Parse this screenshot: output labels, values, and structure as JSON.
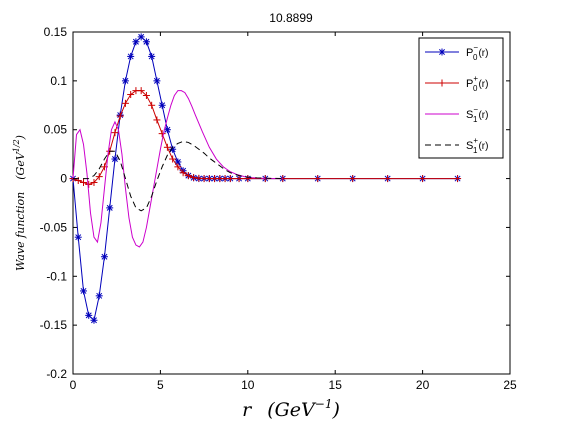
{
  "chart_data": {
    "type": "line",
    "title": "10.8899",
    "xlabel": "r (GeV^-1)",
    "xlabel_main": "r",
    "xlabel_unit_base": "(GeV",
    "xlabel_unit_exp": "−1",
    "xlabel_unit_close": ")",
    "ylabel": "Wave function (GeV^1/2)",
    "ylabel_main": "Wave function",
    "ylabel_unit_base": "(GeV",
    "ylabel_unit_exp": "1/2",
    "ylabel_unit_close": ")",
    "xlim": [
      0,
      25
    ],
    "ylim": [
      -0.2,
      0.15
    ],
    "xticks": [
      "0",
      "5",
      "10",
      "15",
      "20",
      "25"
    ],
    "yticks": [
      "0.15",
      "0.1",
      "0.05",
      "0",
      "-0.05",
      "-0.1",
      "-0.15",
      "-0.2"
    ],
    "grid": false,
    "legend_position": "top-right",
    "series": [
      {
        "name": "P0-(r)",
        "legend": {
          "base": "P",
          "sup": "−",
          "sub": "0",
          "arg": "(r)"
        },
        "color": "#0000bb",
        "line": "solid",
        "marker": "star",
        "x": [
          0.0,
          0.3,
          0.6,
          0.9,
          1.2,
          1.5,
          1.8,
          2.1,
          2.4,
          2.7,
          3.0,
          3.3,
          3.6,
          3.9,
          4.2,
          4.5,
          4.8,
          5.1,
          5.4,
          5.7,
          6.0,
          6.3,
          6.6,
          6.9,
          7.2,
          7.5,
          7.8,
          8.1,
          8.4,
          8.7,
          9.0,
          9.5,
          10.0,
          11.0,
          12.0,
          14.0,
          16.0,
          18.0,
          20.0,
          22.0
        ],
        "y": [
          0.0,
          -0.06,
          -0.115,
          -0.14,
          -0.145,
          -0.12,
          -0.08,
          -0.03,
          0.02,
          0.065,
          0.1,
          0.125,
          0.14,
          0.145,
          0.14,
          0.125,
          0.1,
          0.075,
          0.05,
          0.03,
          0.017,
          0.008,
          0.003,
          0.0008,
          0.0,
          0.0,
          0.0,
          0.0,
          0.0,
          0.0,
          0.0,
          0.0,
          0.0,
          0.0,
          0.0,
          0.0,
          0.0,
          0.0,
          0.0,
          0.0
        ]
      },
      {
        "name": "P0+(r)",
        "legend": {
          "base": "P",
          "sup": "+",
          "sub": "0",
          "arg": "(r)"
        },
        "color": "#cc0000",
        "line": "solid",
        "marker": "plus",
        "x": [
          0.0,
          0.3,
          0.6,
          0.9,
          1.2,
          1.5,
          1.8,
          2.1,
          2.4,
          2.7,
          3.0,
          3.3,
          3.6,
          3.9,
          4.2,
          4.5,
          4.8,
          5.1,
          5.4,
          5.7,
          6.0,
          6.3,
          6.6,
          6.9,
          7.2,
          7.5,
          7.8,
          8.1,
          8.4,
          8.7,
          9.0,
          9.5,
          10.0,
          11.0,
          12.0,
          14.0,
          16.0,
          18.0,
          20.0,
          22.0
        ],
        "y": [
          0.0,
          -0.002,
          -0.004,
          -0.006,
          -0.004,
          0.002,
          0.012,
          0.028,
          0.047,
          0.064,
          0.077,
          0.086,
          0.09,
          0.09,
          0.085,
          0.075,
          0.06,
          0.046,
          0.032,
          0.02,
          0.012,
          0.006,
          0.003,
          0.001,
          0.0003,
          0.0,
          0.0,
          0.0,
          0.0,
          0.0,
          0.0,
          0.0,
          0.0,
          0.0,
          0.0,
          0.0,
          0.0,
          0.0,
          0.0,
          0.0
        ]
      },
      {
        "name": "S1-(r)",
        "legend": {
          "base": "S",
          "sup": "−",
          "sub": "1",
          "arg": "(r)"
        },
        "color": "#cc00cc",
        "line": "solid",
        "marker": "none",
        "x": [
          0.0,
          0.2,
          0.4,
          0.6,
          0.8,
          1.0,
          1.2,
          1.4,
          1.6,
          1.8,
          2.0,
          2.2,
          2.4,
          2.6,
          2.8,
          3.0,
          3.2,
          3.4,
          3.6,
          3.8,
          4.0,
          4.2,
          4.4,
          4.6,
          4.8,
          5.0,
          5.2,
          5.4,
          5.6,
          5.8,
          6.0,
          6.2,
          6.4,
          6.6,
          6.8,
          7.0,
          7.4,
          7.8,
          8.2,
          8.6,
          9.0,
          9.4,
          9.8,
          10.2,
          10.6,
          11.0,
          11.5,
          12.0
        ],
        "y": [
          0.0,
          0.045,
          0.05,
          0.035,
          0.005,
          -0.035,
          -0.06,
          -0.065,
          -0.045,
          -0.01,
          0.025,
          0.05,
          0.058,
          0.05,
          0.025,
          -0.01,
          -0.04,
          -0.06,
          -0.068,
          -0.07,
          -0.065,
          -0.05,
          -0.03,
          -0.01,
          0.01,
          0.03,
          0.048,
          0.062,
          0.075,
          0.085,
          0.09,
          0.09,
          0.088,
          0.082,
          0.074,
          0.065,
          0.048,
          0.032,
          0.02,
          0.012,
          0.007,
          0.004,
          0.002,
          0.001,
          0.0005,
          0.0002,
          0.0001,
          0.0
        ]
      },
      {
        "name": "S1+(r)",
        "legend": {
          "base": "S",
          "sup": "+",
          "sub": "1",
          "arg": "(r)"
        },
        "color": "#000000",
        "line": "dashed",
        "marker": "none",
        "x": [
          0.0,
          0.3,
          0.6,
          0.9,
          1.2,
          1.5,
          1.8,
          2.1,
          2.4,
          2.7,
          3.0,
          3.3,
          3.6,
          3.9,
          4.2,
          4.5,
          4.8,
          5.1,
          5.4,
          5.7,
          6.0,
          6.3,
          6.6,
          6.9,
          7.2,
          7.5,
          7.8,
          8.1,
          8.4,
          8.7,
          9.0,
          9.5,
          10.0,
          10.5,
          11.0,
          12.0
        ],
        "y": [
          0.0,
          0.0,
          0.0,
          0.0,
          0.003,
          0.01,
          0.02,
          0.028,
          0.028,
          0.018,
          0.0,
          -0.018,
          -0.03,
          -0.033,
          -0.03,
          -0.018,
          -0.002,
          0.012,
          0.024,
          0.032,
          0.036,
          0.038,
          0.037,
          0.034,
          0.03,
          0.026,
          0.021,
          0.017,
          0.013,
          0.009,
          0.006,
          0.003,
          0.0015,
          0.0008,
          0.0004,
          0.0
        ]
      }
    ]
  }
}
